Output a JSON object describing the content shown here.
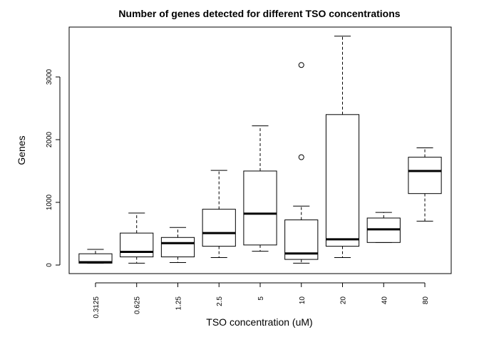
{
  "chart_data": {
    "type": "box",
    "title": "Number of genes detected for different TSO concentrations",
    "xlabel": "TSO concentration (uM)",
    "ylabel": "Genes",
    "ylim": [
      -100,
      3760
    ],
    "yticks": [
      0,
      1000,
      2000,
      3000
    ],
    "ytick_labels": [
      "0",
      "1000",
      "2000",
      "3000"
    ],
    "categories": [
      "0.3125",
      "0.625",
      "1.25",
      "2.5",
      "5",
      "10",
      "20",
      "40",
      "80"
    ],
    "boxes": [
      {
        "lower_whisker": 30,
        "q1": 30,
        "median": 45,
        "q3": 180,
        "upper_whisker": 250,
        "outliers": []
      },
      {
        "lower_whisker": 30,
        "q1": 130,
        "median": 210,
        "q3": 510,
        "upper_whisker": 830,
        "outliers": []
      },
      {
        "lower_whisker": 40,
        "q1": 130,
        "median": 350,
        "q3": 440,
        "upper_whisker": 600,
        "outliers": []
      },
      {
        "lower_whisker": 120,
        "q1": 300,
        "median": 510,
        "q3": 890,
        "upper_whisker": 1510,
        "outliers": []
      },
      {
        "lower_whisker": 220,
        "q1": 320,
        "median": 820,
        "q3": 1500,
        "upper_whisker": 2220,
        "outliers": []
      },
      {
        "lower_whisker": 30,
        "q1": 90,
        "median": 185,
        "q3": 720,
        "upper_whisker": 940,
        "outliers": [
          1720,
          3190
        ]
      },
      {
        "lower_whisker": 120,
        "q1": 300,
        "median": 410,
        "q3": 2400,
        "upper_whisker": 3650,
        "outliers": []
      },
      {
        "lower_whisker": 360,
        "q1": 360,
        "median": 570,
        "q3": 750,
        "upper_whisker": 840,
        "outliers": []
      },
      {
        "lower_whisker": 700,
        "q1": 1140,
        "median": 1500,
        "q3": 1720,
        "upper_whisker": 1870,
        "outliers": []
      }
    ],
    "grid": false
  }
}
